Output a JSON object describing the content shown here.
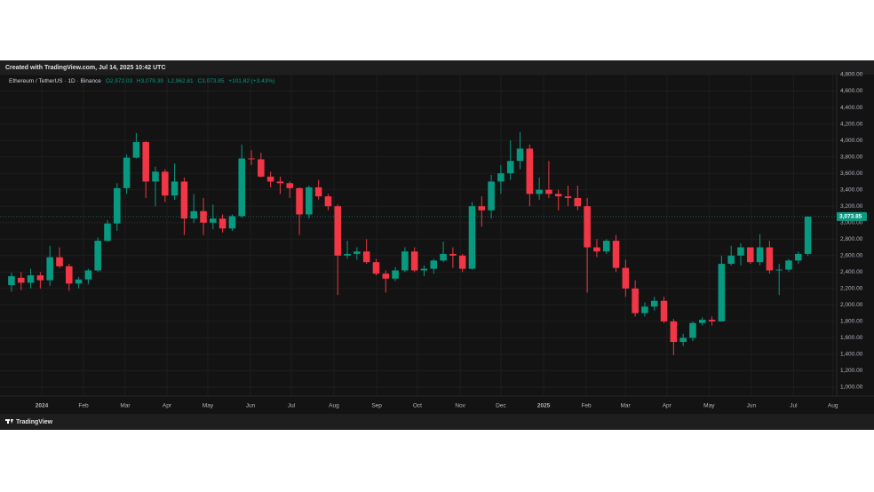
{
  "chart_data": {
    "type": "candlestick",
    "title": "Created with TradingView.com, Jul 14, 2025 10:42 UTC",
    "symbol": "Ethereum / TetherUS · 1D · Binance",
    "ohlc_header": {
      "open": "O2,972.03",
      "high": "H3,079.39",
      "low": "L2,962.81",
      "close": "C3,073.85",
      "change": "+101.82 (+3.43%)"
    },
    "brand": "TradingView",
    "up_color": "#089981",
    "down_color": "#f23645",
    "grid": true,
    "last_price": {
      "value": 3073.85,
      "label": "3,073.85"
    },
    "xlim": [
      -1.2,
      86
    ],
    "xticks": [
      {
        "value": 3.15,
        "label": "2024"
      },
      {
        "value": 7.5,
        "label": "Feb"
      },
      {
        "value": 11.85,
        "label": "Mar"
      },
      {
        "value": 16.2,
        "label": "Apr"
      },
      {
        "value": 20.46,
        "label": "May"
      },
      {
        "value": 24.9,
        "label": "Jun"
      },
      {
        "value": 29.17,
        "label": "Jul"
      },
      {
        "value": 33.6,
        "label": "Aug"
      },
      {
        "value": 38.06,
        "label": "Sep"
      },
      {
        "value": 42.3,
        "label": "Oct"
      },
      {
        "value": 46.76,
        "label": "Nov"
      },
      {
        "value": 51.0,
        "label": "Dec"
      },
      {
        "value": 55.46,
        "label": "2025"
      },
      {
        "value": 59.9,
        "label": "Feb"
      },
      {
        "value": 63.98,
        "label": "Mar"
      },
      {
        "value": 68.3,
        "label": "Apr"
      },
      {
        "value": 72.7,
        "label": "May"
      },
      {
        "value": 77.1,
        "label": "Jun"
      },
      {
        "value": 81.5,
        "label": "Jul"
      },
      {
        "value": 85.6,
        "label": "Aug"
      }
    ],
    "ylim": [
      892,
      4800
    ],
    "yticks": [
      {
        "value": 1000,
        "label": "1,000.00"
      },
      {
        "value": 1200,
        "label": "1,200.00"
      },
      {
        "value": 1400,
        "label": "1,400.00"
      },
      {
        "value": 1600,
        "label": "1,600.00"
      },
      {
        "value": 1800,
        "label": "1,800.00"
      },
      {
        "value": 2000,
        "label": "2,000.00"
      },
      {
        "value": 2200,
        "label": "2,200.00"
      },
      {
        "value": 2400,
        "label": "2,400.00"
      },
      {
        "value": 2600,
        "label": "2,600.00"
      },
      {
        "value": 2800,
        "label": "2,800.00"
      },
      {
        "value": 3000,
        "label": "3,000.00"
      },
      {
        "value": 3200,
        "label": "3,200.00"
      },
      {
        "value": 3400,
        "label": "3,400.00"
      },
      {
        "value": 3600,
        "label": "3,600.00"
      },
      {
        "value": 3800,
        "label": "3,800.00"
      },
      {
        "value": 4000,
        "label": "4,000.00"
      },
      {
        "value": 4200,
        "label": "4,200.00"
      },
      {
        "value": 4400,
        "label": "4,400.00"
      },
      {
        "value": 4600,
        "label": "4,600.00"
      },
      {
        "value": 4800,
        "label": "4,800.00"
      }
    ],
    "open": [
      2240,
      2330,
      2270,
      2360,
      2300,
      2580,
      2470,
      2260,
      2310,
      2420,
      2780,
      2990,
      3420,
      3790,
      3980,
      3500,
      3620,
      3330,
      3500,
      3050,
      3140,
      3000,
      3050,
      2930,
      3080,
      3780,
      3770,
      3560,
      3500,
      3480,
      3420,
      3100,
      3430,
      3320,
      3200,
      2600,
      2620,
      2650,
      2520,
      2380,
      2320,
      2420,
      2650,
      2420,
      2440,
      2540,
      2620,
      2600,
      2440,
      3200,
      3150,
      3500,
      3600,
      3750,
      3900,
      3350,
      3400,
      3350,
      3320,
      3300,
      3200,
      2700,
      2650,
      2780,
      2450,
      2200,
      1900,
      1980,
      2050,
      1800,
      1550,
      1600,
      1780,
      1820,
      1800,
      2500,
      2600,
      2700,
      2520,
      2700,
      2420,
      2430,
      2540,
      2620
    ],
    "high": [
      2390,
      2400,
      2440,
      2400,
      2720,
      2700,
      2500,
      2340,
      2440,
      2820,
      3030,
      3480,
      3830,
      4090,
      3990,
      3680,
      3650,
      3720,
      3550,
      3350,
      3300,
      3220,
      3100,
      3100,
      3950,
      3880,
      3850,
      3620,
      3560,
      3500,
      3430,
      3450,
      3520,
      3350,
      3220,
      2780,
      2700,
      2800,
      2560,
      2420,
      2460,
      2700,
      2700,
      2480,
      2560,
      2770,
      2700,
      2620,
      3250,
      3320,
      3580,
      3700,
      4000,
      4100,
      3950,
      3550,
      3750,
      3400,
      3450,
      3450,
      3300,
      2800,
      2800,
      2850,
      2550,
      2300,
      2030,
      2100,
      2100,
      1830,
      1650,
      1800,
      1850,
      1860,
      2600,
      2720,
      2750,
      2700,
      2860,
      2780,
      2500,
      2560,
      2650,
      3080
    ],
    "low": [
      2160,
      2180,
      2200,
      2200,
      2230,
      2450,
      2170,
      2200,
      2250,
      2400,
      2770,
      2900,
      3350,
      3780,
      3300,
      3200,
      3250,
      3280,
      2850,
      3000,
      2850,
      2920,
      2880,
      2900,
      3060,
      3700,
      3550,
      3430,
      3350,
      3300,
      2850,
      3050,
      3280,
      3150,
      2120,
      2560,
      2550,
      2500,
      2360,
      2150,
      2290,
      2400,
      2400,
      2350,
      2380,
      2520,
      2450,
      2400,
      2430,
      2950,
      3050,
      3350,
      3520,
      3650,
      3200,
      3280,
      3300,
      3150,
      3200,
      3150,
      2150,
      2580,
      2620,
      2400,
      2100,
      1860,
      1860,
      1930,
      1780,
      1390,
      1500,
      1560,
      1750,
      1750,
      1800,
      2480,
      2480,
      2500,
      2480,
      2380,
      2120,
      2400,
      2500,
      2600
    ],
    "close": [
      2350,
      2270,
      2360,
      2300,
      2580,
      2470,
      2260,
      2310,
      2420,
      2780,
      2990,
      3420,
      3790,
      3980,
      3500,
      3620,
      3330,
      3500,
      3050,
      3140,
      3000,
      3050,
      2930,
      3080,
      3780,
      3770,
      3560,
      3500,
      3480,
      3420,
      3100,
      3430,
      3320,
      3200,
      2600,
      2620,
      2650,
      2520,
      2380,
      2320,
      2420,
      2650,
      2420,
      2440,
      2540,
      2620,
      2600,
      2440,
      3200,
      3150,
      3500,
      3600,
      3750,
      3900,
      3350,
      3400,
      3350,
      3320,
      3300,
      3200,
      2700,
      2650,
      2780,
      2450,
      2200,
      1900,
      1980,
      2050,
      1800,
      1550,
      1600,
      1780,
      1820,
      1800,
      2500,
      2600,
      2700,
      2520,
      2700,
      2420,
      2430,
      2540,
      2620,
      3073.85
    ]
  }
}
